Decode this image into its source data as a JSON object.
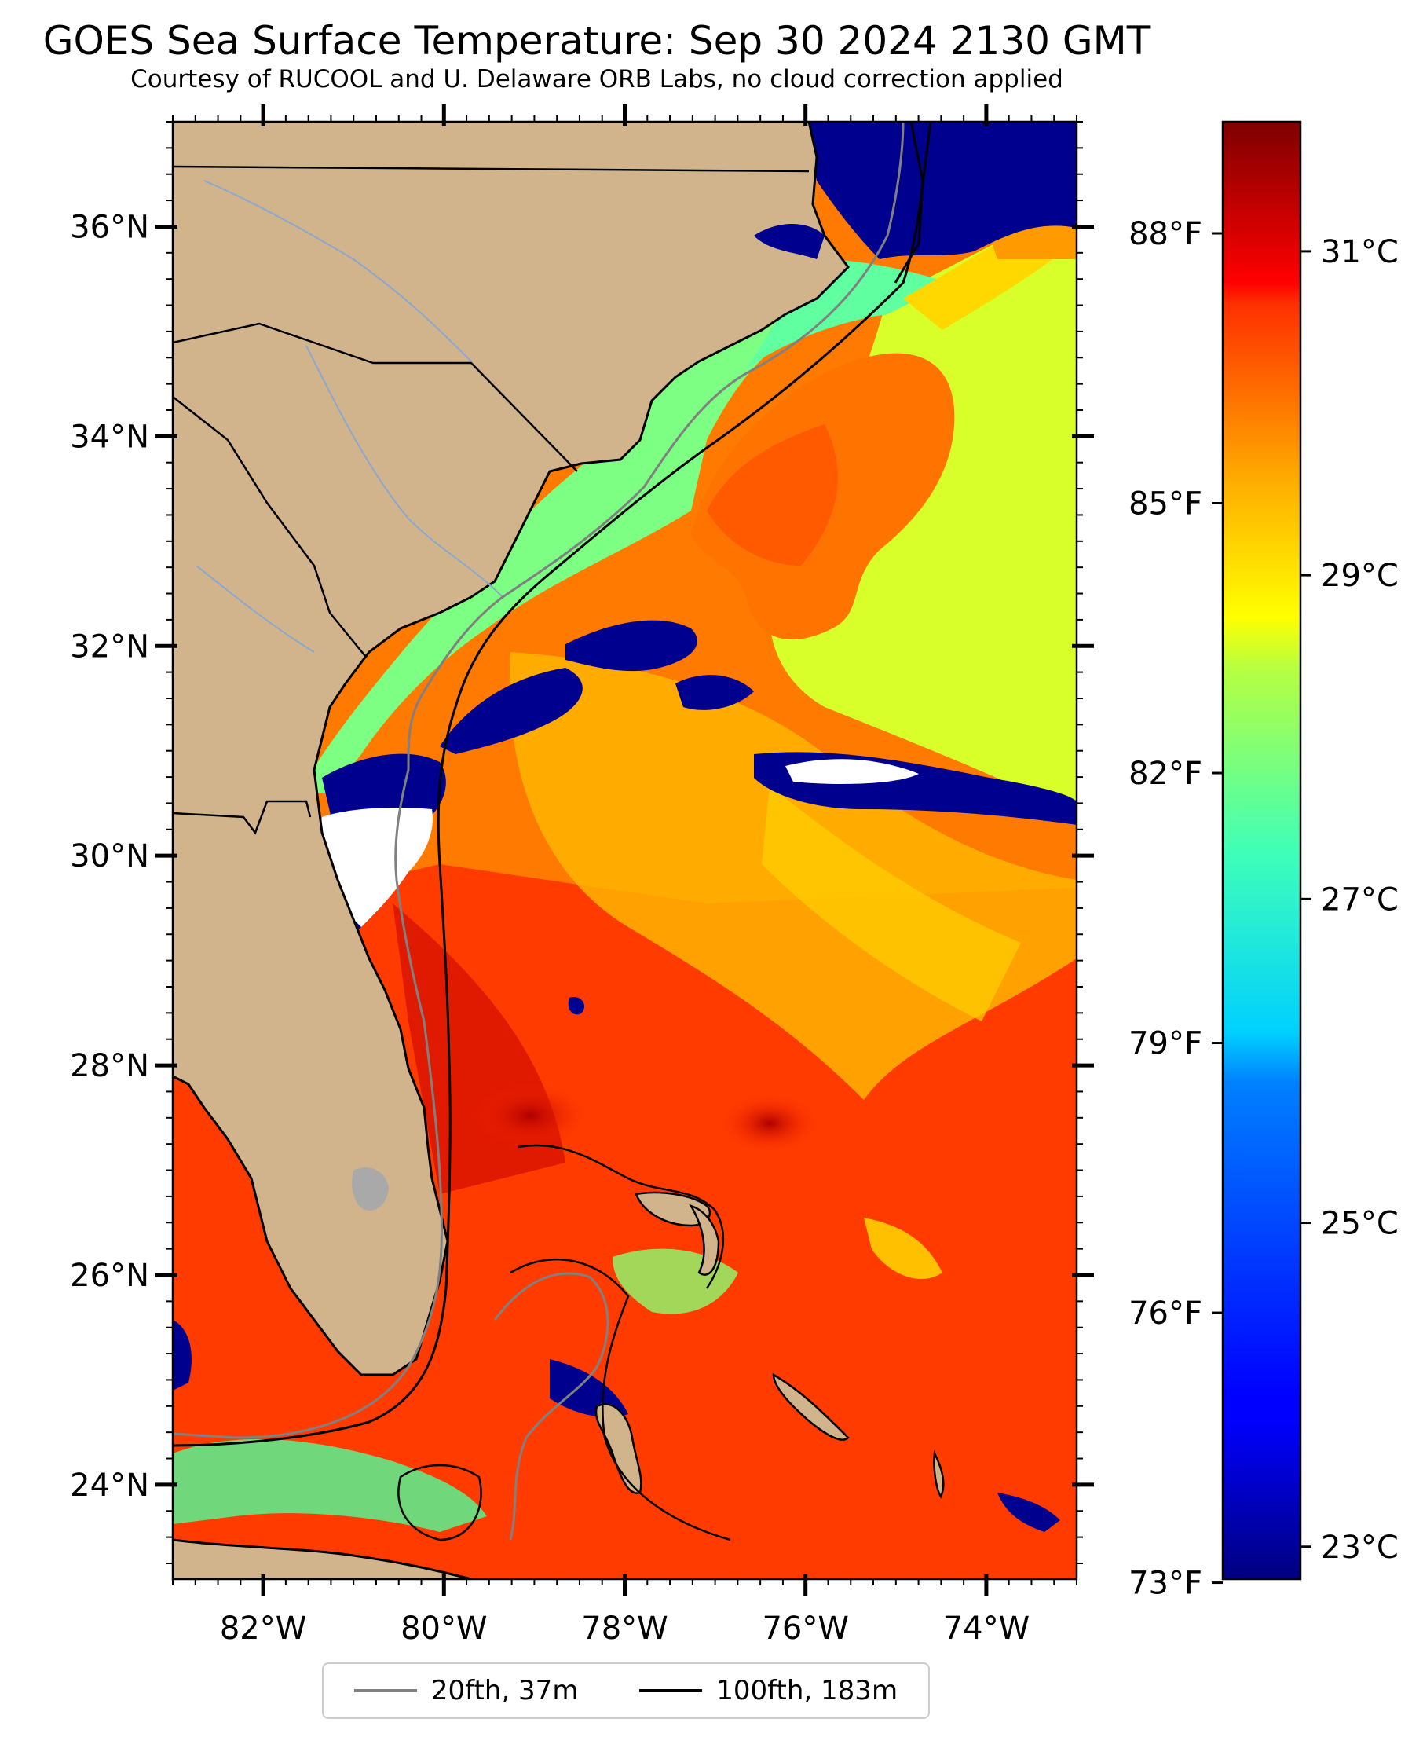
{
  "header": {
    "title": "GOES Sea Surface Temperature: Sep 30 2024 2130 GMT",
    "subtitle": "Courtesy of RUCOOL and U. Delaware ORB Labs, no cloud correction applied"
  },
  "map": {
    "lon_range": [
      -83,
      -73
    ],
    "lat_range": [
      23.1,
      37
    ],
    "lat_ticks": [
      {
        "value": 36,
        "label": "36°N"
      },
      {
        "value": 34,
        "label": "34°N"
      },
      {
        "value": 32,
        "label": "32°N"
      },
      {
        "value": 30,
        "label": "30°N"
      },
      {
        "value": 28,
        "label": "28°N"
      },
      {
        "value": 26,
        "label": "26°N"
      },
      {
        "value": 24,
        "label": "24°N"
      }
    ],
    "lon_ticks": [
      {
        "value": -82,
        "label": "82°W"
      },
      {
        "value": -80,
        "label": "80°W"
      },
      {
        "value": -78,
        "label": "78°W"
      },
      {
        "value": -76,
        "label": "76°W"
      },
      {
        "value": -74,
        "label": "74°W"
      }
    ],
    "colors": {
      "land": "#d2b48c",
      "cloud_cold": "#00008f",
      "missing": "#ffffff",
      "isobath_20fth": "#808080",
      "isobath_100fth": "#000000"
    }
  },
  "colorbar": {
    "vmin_c": 22.8,
    "vmax_c": 31.8,
    "celsius_ticks": [
      {
        "value": 31,
        "label": "31°C"
      },
      {
        "value": 29,
        "label": "29°C"
      },
      {
        "value": 27,
        "label": "27°C"
      },
      {
        "value": 25,
        "label": "25°C"
      },
      {
        "value": 23,
        "label": "23°C"
      }
    ],
    "fahrenheit_ticks": [
      {
        "value": 88,
        "label": "88°F"
      },
      {
        "value": 85,
        "label": "85°F"
      },
      {
        "value": 82,
        "label": "82°F"
      },
      {
        "value": 79,
        "label": "79°F"
      },
      {
        "value": 76,
        "label": "76°F"
      },
      {
        "value": 73,
        "label": "73°F"
      }
    ],
    "colormap": "jet"
  },
  "legend": {
    "items": [
      {
        "label": "20fth, 37m",
        "color": "#808080"
      },
      {
        "label": "100fth, 183m",
        "color": "#000000"
      }
    ]
  }
}
